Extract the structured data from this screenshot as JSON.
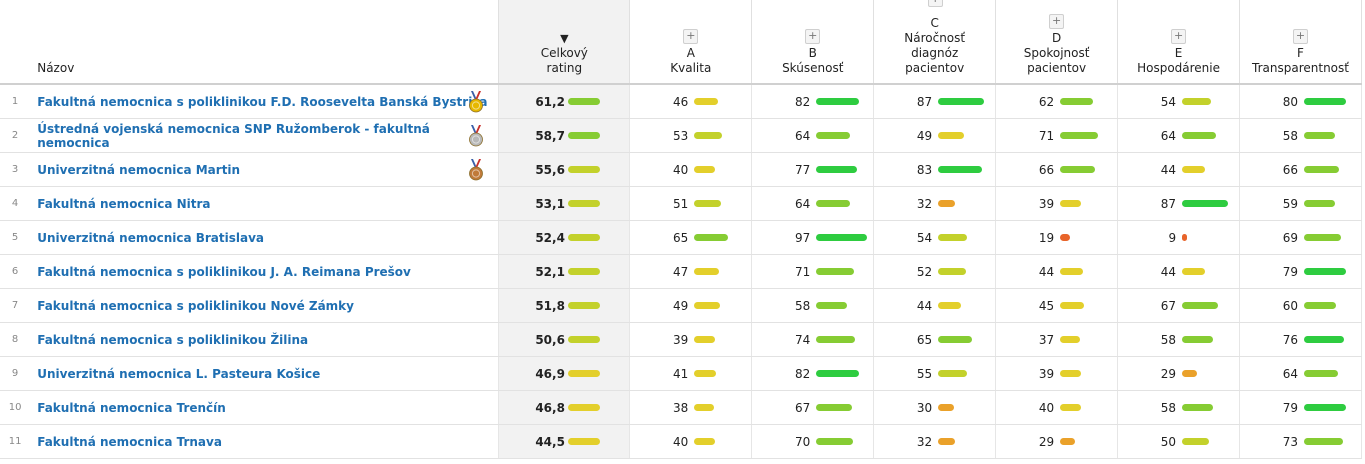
{
  "header": {
    "name_label": "Názov",
    "sort_arrow": "▼",
    "total_label": [
      "Celkový",
      "rating"
    ],
    "criteria": [
      {
        "letter": "A",
        "label": [
          "Kvalita"
        ],
        "plus": "+"
      },
      {
        "letter": "B",
        "label": [
          "Skúsenosť"
        ],
        "plus": "+"
      },
      {
        "letter": "C",
        "label": [
          "Náročnosť",
          "diagnóz",
          "pacientov"
        ],
        "plus": "+"
      },
      {
        "letter": "D",
        "label": [
          "Spokojnosť",
          "pacientov"
        ],
        "plus": "+"
      },
      {
        "letter": "E",
        "label": [
          "Hospodárenie"
        ],
        "plus": "+"
      },
      {
        "letter": "F",
        "label": [
          "Transparentnosť"
        ],
        "plus": "+"
      }
    ]
  },
  "colors": {
    "green": "#2ecc40",
    "lightgreen": "#86cc33",
    "yellowgreen": "#c3d12b",
    "yellow": "#e3cf2b",
    "orange": "#eaa12a",
    "red": "#e8642a",
    "link": "#1f6fb2",
    "gold": "#e6b800",
    "silver": "#b8b8b8",
    "bronze": "#c07a3a"
  },
  "rows": [
    {
      "rank": "1",
      "name": "Fakultná nemocnica s poliklinikou F.D. Roosevelta Banská Bystrica",
      "medal": "gold",
      "total": "61,2",
      "total_value": 61.2,
      "scores": [
        46,
        82,
        87,
        62,
        54,
        80
      ]
    },
    {
      "rank": "2",
      "name": "Ústredná vojenská nemocnica SNP Ružomberok - fakultná nemocnica",
      "medal": "silver",
      "total": "58,7",
      "total_value": 58.7,
      "scores": [
        53,
        64,
        49,
        71,
        64,
        58
      ]
    },
    {
      "rank": "3",
      "name": "Univerzitná nemocnica Martin",
      "medal": "bronze",
      "total": "55,6",
      "total_value": 55.6,
      "scores": [
        40,
        77,
        83,
        66,
        44,
        66
      ]
    },
    {
      "rank": "4",
      "name": "Fakultná nemocnica Nitra",
      "medal": "",
      "total": "53,1",
      "total_value": 53.1,
      "scores": [
        51,
        64,
        32,
        39,
        87,
        59
      ]
    },
    {
      "rank": "5",
      "name": "Univerzitná nemocnica Bratislava",
      "medal": "",
      "total": "52,4",
      "total_value": 52.4,
      "scores": [
        65,
        97,
        54,
        19,
        9,
        69
      ]
    },
    {
      "rank": "6",
      "name": "Fakultná nemocnica s poliklinikou J. A. Reimana Prešov",
      "medal": "",
      "total": "52,1",
      "total_value": 52.1,
      "scores": [
        47,
        71,
        52,
        44,
        44,
        79
      ]
    },
    {
      "rank": "7",
      "name": "Fakultná nemocnica s poliklinikou Nové Zámky",
      "medal": "",
      "total": "51,8",
      "total_value": 51.8,
      "scores": [
        49,
        58,
        44,
        45,
        67,
        60
      ]
    },
    {
      "rank": "8",
      "name": "Fakultná nemocnica s poliklinikou Žilina",
      "medal": "",
      "total": "50,6",
      "total_value": 50.6,
      "scores": [
        39,
        74,
        65,
        37,
        58,
        76
      ]
    },
    {
      "rank": "9",
      "name": "Univerzitná nemocnica L. Pasteura Košice",
      "medal": "",
      "total": "46,9",
      "total_value": 46.9,
      "scores": [
        41,
        82,
        55,
        39,
        29,
        64
      ]
    },
    {
      "rank": "10",
      "name": "Fakultná nemocnica Trenčín",
      "medal": "",
      "total": "46,8",
      "total_value": 46.8,
      "scores": [
        38,
        67,
        30,
        40,
        58,
        79
      ]
    },
    {
      "rank": "11",
      "name": "Fakultná nemocnica Trnava",
      "medal": "",
      "total": "44,5",
      "total_value": 44.5,
      "scores": [
        40,
        70,
        32,
        29,
        50,
        73
      ]
    }
  ]
}
